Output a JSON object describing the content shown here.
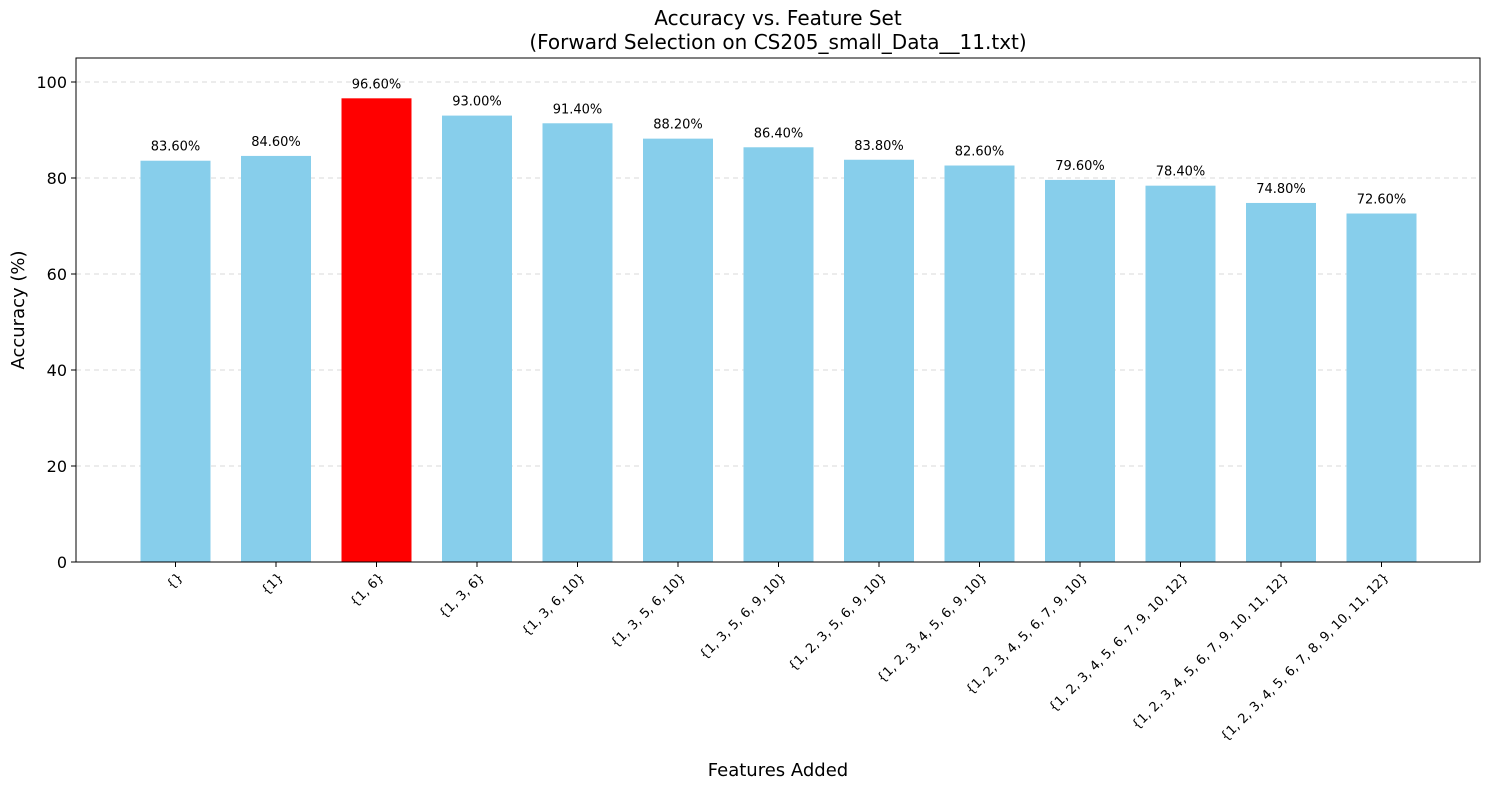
{
  "chart_data": {
    "type": "bar",
    "title": "Accuracy vs. Feature Set",
    "subtitle": "(Forward Selection on CS205_small_Data__11.txt)",
    "xlabel": "Features Added",
    "ylabel": "Accuracy (%)",
    "ylim": [
      0,
      105
    ],
    "yticks": [
      0,
      20,
      40,
      60,
      80,
      100
    ],
    "grid": "y-dashed",
    "categories": [
      "{}",
      "{1}",
      "{1, 6}",
      "{1, 3, 6}",
      "{1, 3, 6, 10}",
      "{1, 3, 5, 6, 10}",
      "{1, 3, 5, 6, 9, 10}",
      "{1, 2, 3, 5, 6, 9, 10}",
      "{1, 2, 3, 4, 5, 6, 9, 10}",
      "{1, 2, 3, 4, 5, 6, 7, 9, 10}",
      "{1, 2, 3, 4, 5, 6, 7, 9, 10, 12}",
      "{1, 2, 3, 4, 5, 6, 7, 9, 10, 11, 12}",
      "{1, 2, 3, 4, 5, 6, 7, 8, 9, 10, 11, 12}"
    ],
    "values": [
      83.6,
      84.6,
      96.6,
      93.0,
      91.4,
      88.2,
      86.4,
      83.8,
      82.6,
      79.6,
      78.4,
      74.8,
      72.6
    ],
    "value_labels": [
      "83.60%",
      "84.60%",
      "96.60%",
      "93.00%",
      "91.40%",
      "88.20%",
      "86.40%",
      "83.80%",
      "82.60%",
      "79.60%",
      "78.40%",
      "74.80%",
      "72.60%"
    ],
    "highlight_index": 2,
    "colors": {
      "bar": "#87ceeb",
      "highlight": "#ff0000"
    }
  }
}
